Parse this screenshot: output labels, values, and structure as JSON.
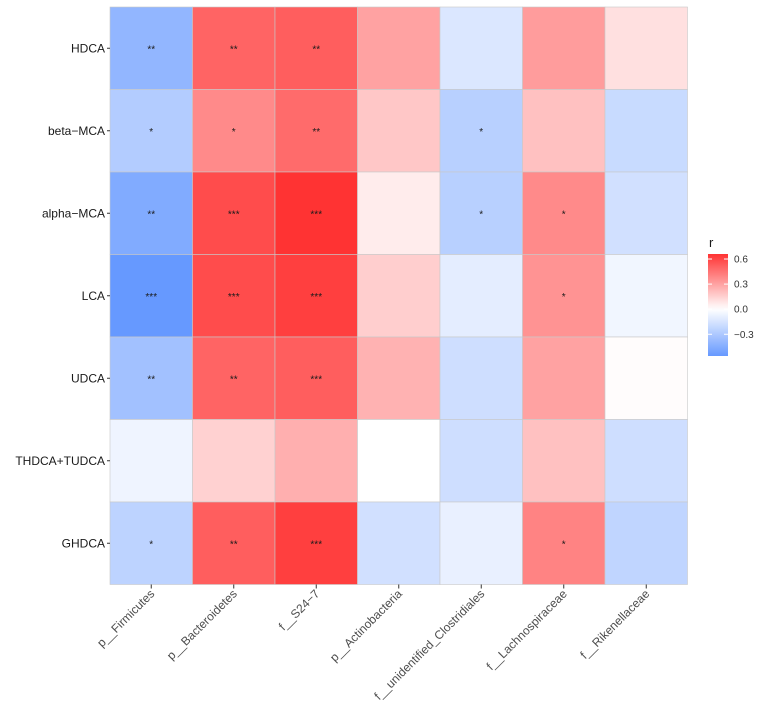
{
  "chart_data": {
    "type": "heatmap",
    "rows": [
      "HDCA",
      "beta−MCA",
      "alpha−MCA",
      "LCA",
      "UDCA",
      "THDCA+TUDCA",
      "GHDCA"
    ],
    "columns": [
      "p__Firmicutes",
      "p__Bacteroidetes",
      "f__S24−7",
      "p__Actinobacteria",
      "f__unidentified_Clostridiales",
      "f__Lachnospiraceae",
      "f__Rikenellaceae"
    ],
    "values": [
      [
        -0.4,
        0.5,
        0.52,
        0.3,
        -0.13,
        0.32,
        0.1
      ],
      [
        -0.28,
        0.38,
        0.48,
        0.18,
        -0.26,
        0.2,
        -0.2
      ],
      [
        -0.46,
        0.58,
        0.66,
        0.06,
        -0.26,
        0.38,
        -0.17
      ],
      [
        -0.56,
        0.58,
        0.62,
        0.16,
        -0.1,
        0.35,
        -0.05
      ],
      [
        -0.34,
        0.5,
        0.52,
        0.25,
        -0.18,
        0.3,
        0.01
      ],
      [
        -0.06,
        0.15,
        0.26,
        0.0,
        -0.18,
        0.2,
        -0.18
      ],
      [
        -0.24,
        0.52,
        0.62,
        -0.17,
        -0.08,
        0.4,
        -0.23
      ]
    ],
    "significance": [
      [
        "**",
        "**",
        "**",
        "",
        "",
        "",
        ""
      ],
      [
        "*",
        "*",
        "**",
        "",
        "*",
        "",
        ""
      ],
      [
        "**",
        "***",
        "***",
        "",
        "*",
        "*",
        ""
      ],
      [
        "***",
        "***",
        "***",
        "",
        "",
        "*",
        ""
      ],
      [
        "**",
        "**",
        "***",
        "",
        "",
        "",
        ""
      ],
      [
        "",
        "",
        "",
        "",
        "",
        "",
        ""
      ],
      [
        "*",
        "**",
        "***",
        "",
        "",
        "*",
        ""
      ]
    ],
    "color_scale": {
      "low": "#6699ff",
      "mid": "#ffffff",
      "high": "#ff3333",
      "limits": [
        -0.56,
        0.66
      ]
    },
    "legend": {
      "title": "r",
      "ticks": [
        0.6,
        0.3,
        0.0,
        -0.3
      ],
      "tick_labels": [
        "0.6",
        "0.3",
        "0.0",
        "−0.3"
      ],
      "position": "right"
    },
    "title": "",
    "xlabel": "",
    "ylabel": ""
  }
}
